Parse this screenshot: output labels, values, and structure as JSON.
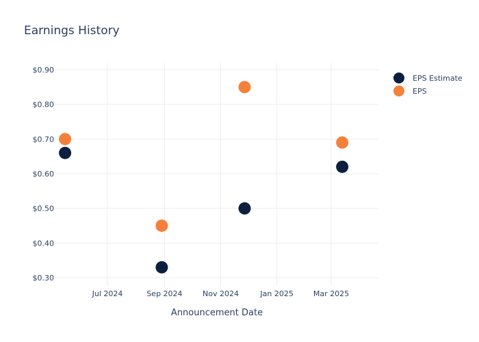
{
  "chart_data": {
    "type": "scatter",
    "title": "Earnings History",
    "xlabel": "Announcement Date",
    "ylabel": "",
    "x_ticks": [
      "Jul 2024",
      "Sep 2024",
      "Nov 2024",
      "Jan 2025",
      "Mar 2025"
    ],
    "y_ticks": [
      "$0.30",
      "$0.40",
      "$0.50",
      "$0.60",
      "$0.70",
      "$0.80",
      "$0.90"
    ],
    "ylim": [
      0.28,
      0.93
    ],
    "grid": true,
    "legend_position": "top-right",
    "x": [
      "2024-05-16",
      "2024-08-29",
      "2024-11-27",
      "2025-03-13"
    ],
    "series": [
      {
        "name": "EPS Estimate",
        "color": "#0d1f3f",
        "values": [
          0.66,
          0.33,
          0.5,
          0.62
        ]
      },
      {
        "name": "EPS",
        "color": "#f5803a",
        "values": [
          0.7,
          0.45,
          0.85,
          0.69
        ]
      }
    ]
  }
}
